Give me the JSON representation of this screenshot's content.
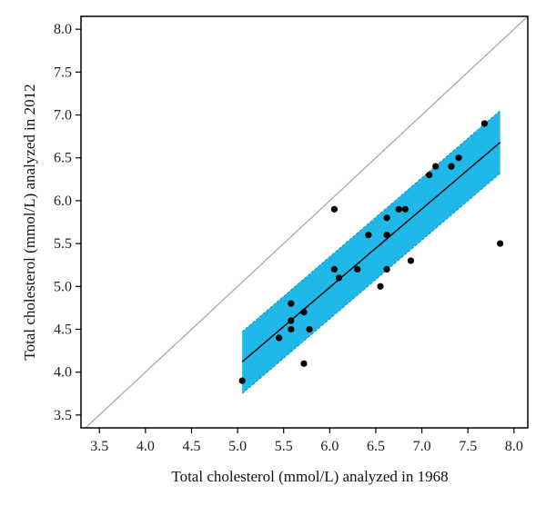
{
  "chart_data": {
    "type": "scatter",
    "xlabel": "Total cholesterol (mmol/L) analyzed in 1968",
    "ylabel": "Total cholesterol (mmol/L) analyzed in 2012",
    "xlim": [
      3.3,
      8.15
    ],
    "ylim": [
      3.35,
      8.15
    ],
    "xticks": [
      "3.5",
      "4.0",
      "4.5",
      "5.0",
      "5.5",
      "6.0",
      "6.5",
      "7.0",
      "7.5",
      "8.0"
    ],
    "yticks": [
      "3.5",
      "4.0",
      "4.5",
      "5.0",
      "5.5",
      "6.0",
      "6.5",
      "7.0",
      "7.5",
      "8.0"
    ],
    "grid": false,
    "identity_line": {
      "from": [
        3.3,
        3.3
      ],
      "to": [
        8.15,
        8.15
      ],
      "color": "#aaaaaa"
    },
    "regression_line": {
      "from": [
        5.05,
        4.12
      ],
      "to": [
        7.85,
        6.68
      ],
      "color": "#000000"
    },
    "confidence_band": {
      "color": "#1fb8e8",
      "upper": [
        [
          5.05,
          4.47
        ],
        [
          7.85,
          7.05
        ]
      ],
      "lower": [
        [
          5.05,
          3.75
        ],
        [
          7.85,
          6.32
        ]
      ]
    },
    "points": [
      {
        "x": 5.05,
        "y": 3.9
      },
      {
        "x": 5.45,
        "y": 4.4
      },
      {
        "x": 5.58,
        "y": 4.6
      },
      {
        "x": 5.58,
        "y": 4.8
      },
      {
        "x": 5.58,
        "y": 4.5
      },
      {
        "x": 5.72,
        "y": 4.7
      },
      {
        "x": 5.72,
        "y": 4.1
      },
      {
        "x": 5.78,
        "y": 4.5
      },
      {
        "x": 6.05,
        "y": 5.2
      },
      {
        "x": 6.05,
        "y": 5.9
      },
      {
        "x": 6.1,
        "y": 5.1
      },
      {
        "x": 6.3,
        "y": 5.2
      },
      {
        "x": 6.42,
        "y": 5.6
      },
      {
        "x": 6.55,
        "y": 5.0
      },
      {
        "x": 6.62,
        "y": 5.2
      },
      {
        "x": 6.62,
        "y": 5.6
      },
      {
        "x": 6.62,
        "y": 5.8
      },
      {
        "x": 6.75,
        "y": 5.9
      },
      {
        "x": 6.82,
        "y": 5.9
      },
      {
        "x": 6.88,
        "y": 5.3
      },
      {
        "x": 7.08,
        "y": 6.3
      },
      {
        "x": 7.15,
        "y": 6.4
      },
      {
        "x": 7.32,
        "y": 6.4
      },
      {
        "x": 7.4,
        "y": 6.5
      },
      {
        "x": 7.68,
        "y": 6.9
      },
      {
        "x": 7.85,
        "y": 5.5
      }
    ]
  }
}
